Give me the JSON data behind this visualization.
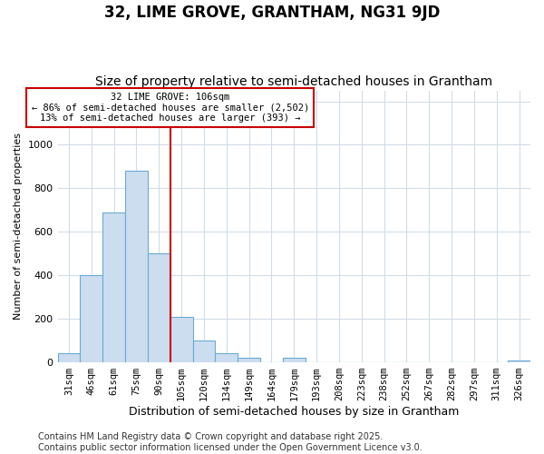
{
  "title": "32, LIME GROVE, GRANTHAM, NG31 9JD",
  "subtitle": "Size of property relative to semi-detached houses in Grantham",
  "xlabel": "Distribution of semi-detached houses by size in Grantham",
  "ylabel": "Number of semi-detached properties",
  "bar_heights": [
    40,
    400,
    690,
    880,
    500,
    210,
    100,
    40,
    20,
    0,
    20,
    0,
    0,
    0,
    0,
    0,
    0,
    0,
    0,
    0,
    10
  ],
  "bar_labels": [
    "31sqm",
    "46sqm",
    "61sqm",
    "75sqm",
    "90sqm",
    "105sqm",
    "120sqm",
    "134sqm",
    "149sqm",
    "164sqm",
    "179sqm",
    "193sqm",
    "208sqm",
    "223sqm",
    "238sqm",
    "252sqm",
    "267sqm",
    "282sqm",
    "297sqm",
    "311sqm",
    "326sqm"
  ],
  "bar_color": "#ccddf0",
  "bar_edge_color": "#6aaad4",
  "vline_color": "#cc0000",
  "vline_bar_index": 5,
  "annotation_text_line1": "32 LIME GROVE: 106sqm",
  "annotation_text_line2": "← 86% of semi-detached houses are smaller (2,502)",
  "annotation_text_line3": "13% of semi-detached houses are larger (393) →",
  "ylim": [
    0,
    1250
  ],
  "yticks": [
    0,
    200,
    400,
    600,
    800,
    1000,
    1200
  ],
  "background_color": "#ffffff",
  "plot_bg_color": "#ffffff",
  "grid_color": "#d0dce8",
  "title_fontsize": 12,
  "subtitle_fontsize": 10,
  "xlabel_fontsize": 9,
  "ylabel_fontsize": 8,
  "tick_fontsize": 7.5,
  "footer_text": "Contains HM Land Registry data © Crown copyright and database right 2025.\nContains public sector information licensed under the Open Government Licence v3.0.",
  "footer_fontsize": 7
}
